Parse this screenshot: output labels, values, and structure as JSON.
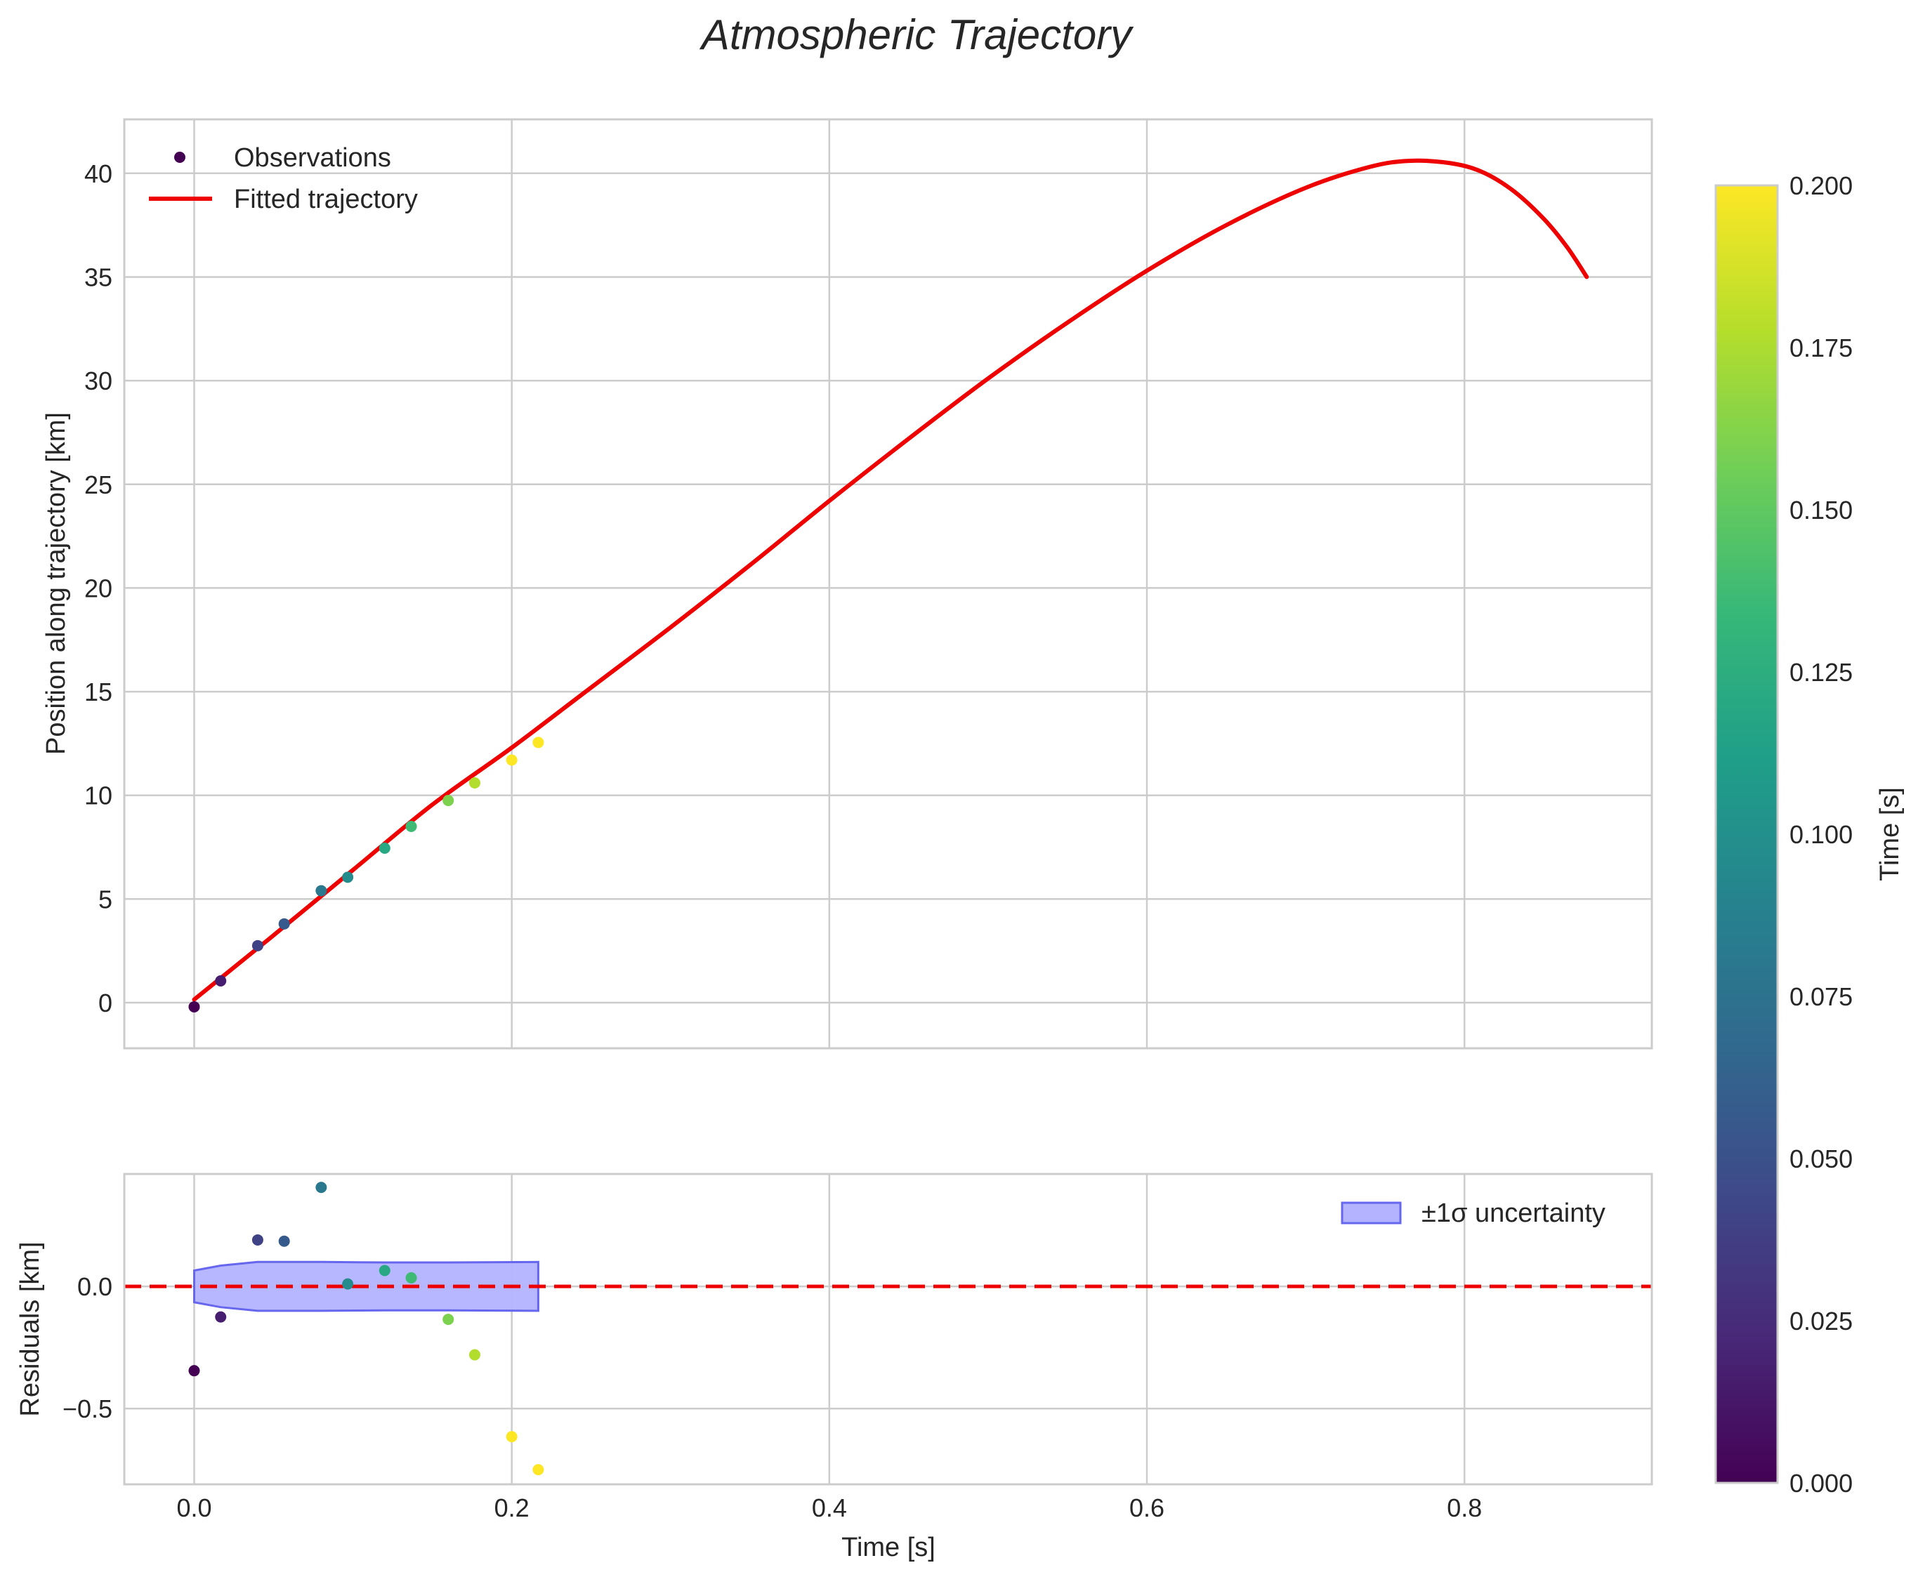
{
  "chart_data": {
    "title": "Atmospheric Trajectory",
    "colors": {
      "fit_line": "#ee0000",
      "zero_line": "#ee0000",
      "band_fill": "#b3b3ff",
      "band_edge": "#6666ee",
      "grid": "#cccccc",
      "text": "#262626"
    },
    "panels": [
      {
        "id": "main",
        "type": "scatter+line",
        "xlabel": "",
        "ylabel": "Position along trajectory [km]",
        "xlim": [
          -0.044,
          0.918
        ],
        "ylim": [
          -2.2,
          42.6
        ],
        "yticks": [
          0,
          5,
          10,
          15,
          20,
          25,
          30,
          35,
          40
        ],
        "ytick_labels": [
          "0",
          "5",
          "10",
          "15",
          "20",
          "25",
          "30",
          "35",
          "40"
        ],
        "observations": {
          "name": "Observations",
          "t": [
            0.0,
            0.0167,
            0.04,
            0.0567,
            0.08,
            0.0967,
            0.12,
            0.1367,
            0.16,
            0.1767,
            0.2,
            0.2167
          ],
          "y": [
            -0.2,
            1.05,
            2.75,
            3.8,
            5.4,
            6.05,
            7.45,
            8.5,
            9.75,
            10.6,
            11.7,
            12.55
          ]
        },
        "fit": {
          "name": "Fitted trajectory",
          "t": [
            0.0,
            0.05,
            0.1,
            0.15,
            0.2,
            0.25,
            0.3,
            0.35,
            0.4,
            0.45,
            0.5,
            0.55,
            0.6,
            0.65,
            0.7,
            0.74,
            0.765,
            0.79,
            0.81,
            0.83,
            0.85,
            0.865,
            0.877
          ],
          "y": [
            0.15,
            3.25,
            6.4,
            9.55,
            12.3,
            15.2,
            18.1,
            21.1,
            24.2,
            27.2,
            30.1,
            32.8,
            35.3,
            37.5,
            39.3,
            40.3,
            40.6,
            40.5,
            40.1,
            39.2,
            37.8,
            36.4,
            35.0
          ]
        },
        "legend": {
          "loc": "upper left",
          "entries": [
            "Observations",
            "Fitted trajectory"
          ]
        }
      },
      {
        "id": "residuals",
        "type": "scatter+band",
        "xlabel": "Time [s]",
        "ylabel": "Residuals [km]",
        "xlim": [
          -0.044,
          0.918
        ],
        "ylim": [
          -0.81,
          0.46
        ],
        "xticks": [
          0.0,
          0.2,
          0.4,
          0.6,
          0.8
        ],
        "xtick_labels": [
          "0.0",
          "0.2",
          "0.4",
          "0.6",
          "0.8"
        ],
        "yticks": [
          0.0,
          -0.5
        ],
        "ytick_labels": [
          "0.0",
          "−0.5"
        ],
        "points": {
          "t": [
            0.0,
            0.0167,
            0.04,
            0.0567,
            0.08,
            0.0967,
            0.12,
            0.1367,
            0.16,
            0.1767,
            0.2,
            0.2167
          ],
          "r": [
            -0.345,
            -0.125,
            0.19,
            0.185,
            0.405,
            0.01,
            0.065,
            0.035,
            -0.135,
            -0.28,
            -0.615,
            -0.75
          ]
        },
        "band": {
          "name": "±1σ uncertainty",
          "t": [
            0.0,
            0.0167,
            0.04,
            0.08,
            0.12,
            0.16,
            0.2167
          ],
          "sigma": [
            0.065,
            0.085,
            0.1,
            0.1,
            0.098,
            0.098,
            0.1
          ]
        },
        "zero_line": 0,
        "legend": {
          "loc": "upper right",
          "entries": [
            "±1σ uncertainty"
          ]
        }
      }
    ],
    "colorbar": {
      "label": "Time [s]",
      "cmap": "viridis",
      "range": [
        0.0,
        0.2
      ],
      "ticks": [
        0.0,
        0.025,
        0.05,
        0.075,
        0.1,
        0.125,
        0.15,
        0.175,
        0.2
      ],
      "tick_labels": [
        "0.000",
        "0.025",
        "0.050",
        "0.075",
        "0.100",
        "0.125",
        "0.150",
        "0.175",
        "0.200"
      ],
      "stops": [
        "#440154",
        "#482878",
        "#3e4989",
        "#31688e",
        "#26828e",
        "#1f9e89",
        "#35b779",
        "#6ece58",
        "#b5de2b",
        "#fde725"
      ]
    }
  }
}
